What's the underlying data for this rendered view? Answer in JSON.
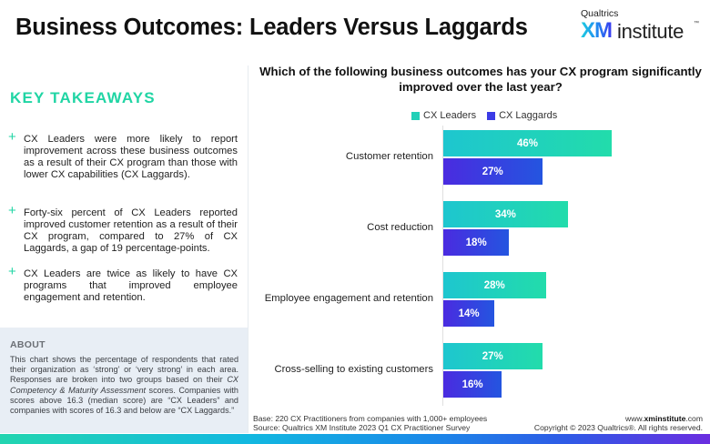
{
  "header": {
    "title": "Business Outcomes: Leaders Versus Laggards",
    "logo": {
      "brand": "Qualtrics",
      "xm": "XM",
      "institute": "institute",
      "tm": "™"
    }
  },
  "takeaways": {
    "heading": "KEY TAKEAWAYS",
    "bullet_icon": "+",
    "items": [
      "CX Leaders were more likely to report improvement across these business outcomes as a result of their CX program than those with lower CX capabilities (CX Laggards).",
      "Forty-six percent of CX Leaders reported improved customer retention as a result of their CX program, compared to 27% of CX Laggards, a gap of 19 percentage-points.",
      "CX Leaders are twice as likely to have CX programs that improved employee engagement and retention."
    ]
  },
  "about": {
    "heading": "ABOUT",
    "text_1": "This chart shows the percentage of respondents that rated their organization as ‘strong’ or ‘very strong’ in each area. Responses are broken into two groups based on their ",
    "text_italic": "CX Competency & Maturity Assessment",
    "text_2": " scores. Companies with scores above 16.3 (median score) are “CX Leaders” and companies with scores of 16.3 and below are “CX Laggards.”"
  },
  "colors": {
    "leaders": "#20d0b8",
    "laggards": "#3a3ae0",
    "accent_green": "#20d5a4"
  },
  "chart_data": {
    "type": "bar",
    "orientation": "horizontal",
    "title": "Which of the following business outcomes has your CX program significantly improved over the last year?",
    "xlabel": "",
    "ylabel": "",
    "value_format": "percent",
    "grid": false,
    "legend_position": "top",
    "xlim": [
      0,
      70
    ],
    "categories": [
      "Customer retention",
      "Cost reduction",
      "Employee engagement and retention",
      "Cross-selling to existing customers"
    ],
    "series": [
      {
        "name": "CX Leaders",
        "values": [
          46,
          34,
          28,
          27
        ]
      },
      {
        "name": "CX Laggards",
        "values": [
          27,
          18,
          14,
          16
        ]
      }
    ]
  },
  "footer": {
    "base": "Base: 220 CX Practitioners from companies with 1,000+ employees",
    "source": "Source: Qualtrics XM Institute 2023 Q1 CX Practitioner Survey",
    "url_prefix": "www.",
    "url_bold": "xminstitute",
    "url_suffix": ".com",
    "copyright": "Copyright © 2023 Qualtrics®. All rights reserved."
  }
}
